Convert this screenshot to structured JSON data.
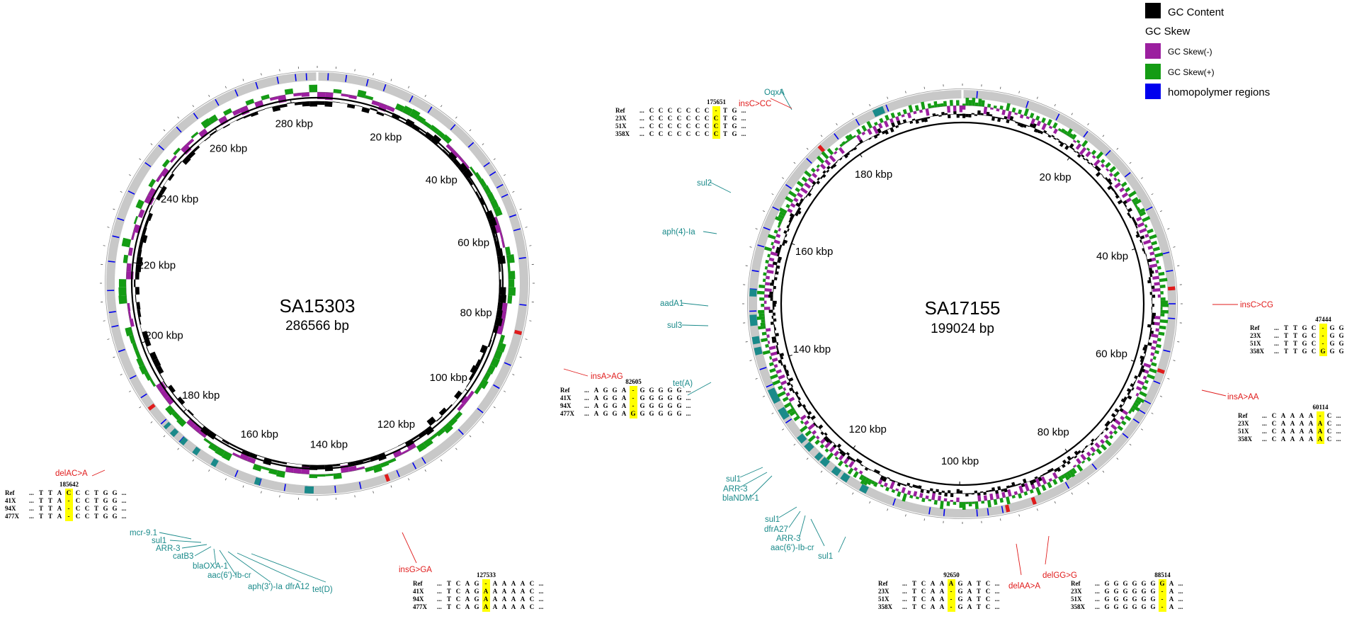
{
  "legend": {
    "gc_content": {
      "label": "GC Content",
      "color": "#000000"
    },
    "gc_skew_title": "GC Skew",
    "gc_skew_neg": {
      "label": "GC Skew(-)",
      "color": "#9b1f9f"
    },
    "gc_skew_pos": {
      "label": "GC Skew(+)",
      "color": "#149c14"
    },
    "homopolymer": {
      "label": "homopolymer regions",
      "color": "#0000ee"
    }
  },
  "colors": {
    "backbone": "#c8c8c8",
    "resistance_gene": "#1a8a8a",
    "mutation": "#e01b1b",
    "highlight": "#ffff00"
  },
  "plasmids": [
    {
      "name": "SA15303",
      "length": "286566 bp",
      "ticks": [
        "20 kbp",
        "40 kbp",
        "60 kbp",
        "80 kbp",
        "100 kbp",
        "120 kbp",
        "140 kbp",
        "160 kbp",
        "180 kbp",
        "200 kbp",
        "220 kbp",
        "240 kbp",
        "260 kbp",
        "280 kbp"
      ],
      "genes": [
        "mcr-9.1",
        "sul1",
        "ARR-3",
        "catB3",
        "blaOXA-1",
        "aac(6')-Ib-cr",
        "aph(3')-Ia",
        "dfrA12",
        "tet(D)"
      ],
      "mutations": [
        {
          "label": "insA>AG",
          "position": "82605",
          "rows": [
            {
              "sample": "Ref",
              "seq": [
                "...",
                "A",
                "G",
                "G",
                "A",
                "-",
                "G",
                "G",
                "G",
                "G",
                "G",
                "..."
              ]
            },
            {
              "sample": "41X",
              "seq": [
                "...",
                "A",
                "G",
                "G",
                "A",
                "-",
                "G",
                "G",
                "G",
                "G",
                "G",
                "..."
              ]
            },
            {
              "sample": "94X",
              "seq": [
                "...",
                "A",
                "G",
                "G",
                "A",
                "-",
                "G",
                "G",
                "G",
                "G",
                "G",
                "..."
              ]
            },
            {
              "sample": "477X",
              "seq": [
                "...",
                "A",
                "G",
                "G",
                "A",
                "G",
                "G",
                "G",
                "G",
                "G",
                "G",
                "..."
              ]
            }
          ]
        },
        {
          "label": "insG>GA",
          "position": "127533",
          "rows": [
            {
              "sample": "Ref",
              "seq": [
                "...",
                "T",
                "C",
                "A",
                "G",
                "-",
                "A",
                "A",
                "A",
                "A",
                "C",
                "..."
              ]
            },
            {
              "sample": "41X",
              "seq": [
                "...",
                "T",
                "C",
                "A",
                "G",
                "A",
                "A",
                "A",
                "A",
                "A",
                "C",
                "..."
              ]
            },
            {
              "sample": "94X",
              "seq": [
                "...",
                "T",
                "C",
                "A",
                "G",
                "A",
                "A",
                "A",
                "A",
                "A",
                "C",
                "..."
              ]
            },
            {
              "sample": "477X",
              "seq": [
                "...",
                "T",
                "C",
                "A",
                "G",
                "A",
                "A",
                "A",
                "A",
                "A",
                "C",
                "..."
              ]
            }
          ]
        },
        {
          "label": "delAC>A",
          "position": "185642",
          "rows": [
            {
              "sample": "Ref",
              "seq": [
                "...",
                "T",
                "T",
                "A",
                "C",
                "C",
                "C",
                "T",
                "G",
                "G",
                "..."
              ]
            },
            {
              "sample": "41X",
              "seq": [
                "...",
                "T",
                "T",
                "A",
                "-",
                "C",
                "C",
                "T",
                "G",
                "G",
                "..."
              ]
            },
            {
              "sample": "94X",
              "seq": [
                "...",
                "T",
                "T",
                "A",
                "-",
                "C",
                "C",
                "T",
                "G",
                "G",
                "..."
              ]
            },
            {
              "sample": "477X",
              "seq": [
                "...",
                "T",
                "T",
                "A",
                "-",
                "C",
                "C",
                "T",
                "G",
                "G",
                "..."
              ]
            }
          ]
        }
      ]
    },
    {
      "name": "SA17155",
      "length": "199024 bp",
      "ticks": [
        "20 kbp",
        "40 kbp",
        "60 kbp",
        "80 kbp",
        "100 kbp",
        "120 kbp",
        "140 kbp",
        "160 kbp",
        "180 kbp"
      ],
      "genes": [
        "OqxA",
        "sul2",
        "aph(4)-Ia",
        "aadA1",
        "sul3",
        "tet(A)",
        "sul1",
        "ARR-3",
        "blaNDM-1",
        "sul1",
        "dfrA27",
        "ARR-3",
        "aac(6')-Ib-cr",
        "sul1"
      ],
      "mutations": [
        {
          "label": "insC>CC",
          "position": "175651",
          "rows": [
            {
              "sample": "Ref",
              "seq": [
                "...",
                "C",
                "C",
                "C",
                "C",
                "C",
                "C",
                "C",
                "-",
                "T",
                "G",
                "..."
              ]
            },
            {
              "sample": "23X",
              "seq": [
                "...",
                "C",
                "C",
                "C",
                "C",
                "C",
                "C",
                "C",
                "C",
                "T",
                "G",
                "..."
              ]
            },
            {
              "sample": "51X",
              "seq": [
                "...",
                "C",
                "C",
                "C",
                "C",
                "C",
                "C",
                "C",
                "C",
                "T",
                "G",
                "..."
              ]
            },
            {
              "sample": "358X",
              "seq": [
                "...",
                "C",
                "C",
                "C",
                "C",
                "C",
                "C",
                "C",
                "C",
                "T",
                "G",
                "..."
              ]
            }
          ]
        },
        {
          "label": "insC>CG",
          "position": "47444",
          "rows": [
            {
              "sample": "Ref",
              "seq": [
                "...",
                "T",
                "T",
                "G",
                "C",
                "-",
                "G",
                "G",
                "G",
                "G",
                "G",
                "..."
              ]
            },
            {
              "sample": "23X",
              "seq": [
                "...",
                "T",
                "T",
                "G",
                "C",
                "-",
                "G",
                "G",
                "G",
                "G",
                "G",
                "..."
              ]
            },
            {
              "sample": "51X",
              "seq": [
                "...",
                "T",
                "T",
                "G",
                "C",
                "-",
                "G",
                "G",
                "G",
                "G",
                "G",
                "..."
              ]
            },
            {
              "sample": "358X",
              "seq": [
                "...",
                "T",
                "T",
                "G",
                "C",
                "G",
                "G",
                "G",
                "G",
                "G",
                "G",
                "..."
              ]
            }
          ]
        },
        {
          "label": "insA>AA",
          "position": "60114",
          "rows": [
            {
              "sample": "Ref",
              "seq": [
                "...",
                "C",
                "A",
                "A",
                "A",
                "A",
                "-",
                "C",
                "..."
              ]
            },
            {
              "sample": "23X",
              "seq": [
                "...",
                "C",
                "A",
                "A",
                "A",
                "A",
                "A",
                "C",
                "..."
              ]
            },
            {
              "sample": "51X",
              "seq": [
                "...",
                "C",
                "A",
                "A",
                "A",
                "A",
                "A",
                "C",
                "..."
              ]
            },
            {
              "sample": "358X",
              "seq": [
                "...",
                "C",
                "A",
                "A",
                "A",
                "A",
                "A",
                "C",
                "..."
              ]
            }
          ]
        },
        {
          "label": "delAA>A",
          "position": "92650",
          "rows": [
            {
              "sample": "Ref",
              "seq": [
                "...",
                "T",
                "C",
                "A",
                "A",
                "A",
                "G",
                "A",
                "T",
                "C",
                "..."
              ]
            },
            {
              "sample": "23X",
              "seq": [
                "...",
                "T",
                "C",
                "A",
                "A",
                "-",
                "G",
                "A",
                "T",
                "C",
                "..."
              ]
            },
            {
              "sample": "51X",
              "seq": [
                "...",
                "T",
                "C",
                "A",
                "A",
                "-",
                "G",
                "A",
                "T",
                "C",
                "..."
              ]
            },
            {
              "sample": "358X",
              "seq": [
                "...",
                "T",
                "C",
                "A",
                "A",
                "-",
                "G",
                "A",
                "T",
                "C",
                "..."
              ]
            }
          ]
        },
        {
          "label": "delGG>G",
          "position": "88514",
          "rows": [
            {
              "sample": "Ref",
              "seq": [
                "...",
                "G",
                "G",
                "G",
                "G",
                "G",
                "G",
                "G",
                "A",
                "..."
              ]
            },
            {
              "sample": "23X",
              "seq": [
                "...",
                "G",
                "G",
                "G",
                "G",
                "G",
                "G",
                "-",
                "A",
                "..."
              ]
            },
            {
              "sample": "51X",
              "seq": [
                "...",
                "G",
                "G",
                "G",
                "G",
                "G",
                "G",
                "-",
                "A",
                "..."
              ]
            },
            {
              "sample": "358X",
              "seq": [
                "...",
                "G",
                "G",
                "G",
                "G",
                "G",
                "G",
                "-",
                "A",
                "..."
              ]
            }
          ]
        }
      ]
    }
  ]
}
